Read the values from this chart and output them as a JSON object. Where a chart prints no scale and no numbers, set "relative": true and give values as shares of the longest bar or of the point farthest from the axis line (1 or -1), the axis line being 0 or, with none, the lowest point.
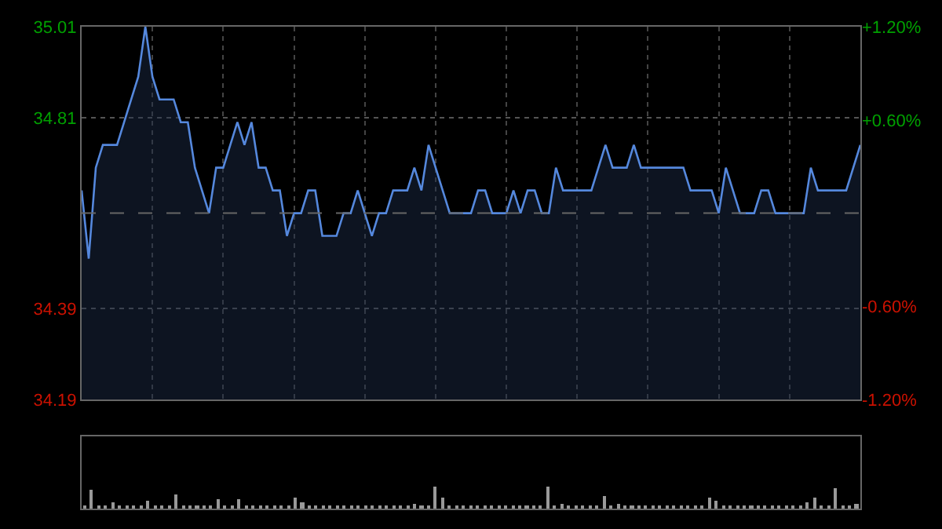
{
  "chart_data": [
    {
      "type": "area",
      "categories": [
        null,
        null,
        null,
        null,
        null,
        null,
        null,
        null,
        null,
        null,
        null,
        null,
        null,
        null,
        null,
        null,
        null,
        null,
        null,
        null,
        null,
        null,
        null,
        null,
        null,
        null,
        null,
        null,
        null,
        null,
        null,
        null,
        null,
        null,
        null,
        null,
        null,
        null,
        null,
        null,
        null,
        null,
        null,
        null,
        null,
        null,
        null,
        null,
        null,
        null,
        null,
        null,
        null,
        null,
        null,
        null,
        null,
        null,
        null,
        null,
        null,
        null,
        null,
        null,
        null,
        null,
        null,
        null,
        null,
        null,
        null,
        null,
        null,
        null,
        null,
        null,
        null,
        null,
        null,
        null,
        null,
        null,
        null,
        null,
        null,
        null,
        null,
        null,
        null,
        null,
        null,
        null,
        null,
        null,
        null,
        null,
        null,
        null,
        null,
        null,
        null,
        null,
        null,
        null,
        null,
        null,
        null,
        null,
        null,
        null,
        null
      ],
      "series": [
        {
          "color": "#5588dd",
          "values": [
            34.65,
            34.5,
            34.7,
            34.75,
            34.75,
            34.75,
            34.8,
            34.85,
            34.9,
            35.01,
            34.9,
            34.85,
            34.85,
            34.85,
            34.8,
            34.8,
            34.7,
            34.65,
            34.6,
            34.7,
            34.7,
            34.75,
            34.8,
            34.75,
            34.8,
            34.7,
            34.7,
            34.65,
            34.65,
            34.55,
            34.6,
            34.6,
            34.65,
            34.65,
            34.55,
            34.55,
            34.55,
            34.6,
            34.6,
            34.65,
            34.6,
            34.55,
            34.6,
            34.6,
            34.65,
            34.65,
            34.65,
            34.7,
            34.65,
            34.75,
            34.7,
            34.65,
            34.6,
            34.6,
            34.6,
            34.6,
            34.65,
            34.65,
            34.6,
            34.6,
            34.6,
            34.65,
            34.6,
            34.65,
            34.65,
            34.6,
            34.6,
            34.7,
            34.65,
            34.65,
            34.65,
            34.65,
            34.65,
            34.7,
            34.75,
            34.7,
            34.7,
            34.7,
            34.75,
            34.7,
            34.7,
            34.7,
            34.7,
            34.7,
            34.7,
            34.7,
            34.65,
            34.65,
            34.65,
            34.65,
            34.6,
            34.7,
            34.65,
            34.6,
            34.6,
            34.6,
            34.65,
            34.65,
            34.6,
            34.6,
            34.6,
            34.6,
            34.6,
            34.7,
            34.65,
            34.65,
            34.65,
            34.65,
            34.65,
            34.7,
            34.75
          ]
        }
      ],
      "ylim": [
        34.19,
        35.01
      ],
      "yticks": [
        34.19,
        34.39,
        34.81,
        35.01
      ],
      "y2lim": [
        -1.2,
        1.2
      ],
      "y2ticks": [
        {
          "value": -1.2,
          "label": "-1.20%"
        },
        {
          "value": -0.6,
          "label": "-0.60%"
        },
        {
          "value": 0.6,
          "label": "+0.60%"
        },
        {
          "value": 1.2,
          "label": "+1.20%"
        }
      ],
      "ref_lines": [
        {
          "axis": "y",
          "value": 34.6,
          "color": "#666666",
          "line_style": "dashed"
        }
      ],
      "grid": true
    },
    {
      "type": "bar",
      "relative": true,
      "color": "#999999",
      "categories": [
        null,
        null,
        null,
        null,
        null,
        null,
        null,
        null,
        null,
        null,
        null,
        null,
        null,
        null,
        null,
        null,
        null,
        null,
        null,
        null,
        null,
        null,
        null,
        null,
        null,
        null,
        null,
        null,
        null,
        null,
        null,
        null,
        null,
        null,
        null,
        null,
        null,
        null,
        null,
        null,
        null,
        null,
        null,
        null,
        null,
        null,
        null,
        null,
        null,
        null,
        null,
        null,
        null,
        null,
        null,
        null,
        null,
        null,
        null,
        null,
        null,
        null,
        null,
        null,
        null,
        null,
        null,
        null,
        null,
        null,
        null,
        null,
        null,
        null,
        null,
        null,
        null,
        null,
        null,
        null,
        null,
        null,
        null,
        null,
        null,
        null,
        null,
        null,
        null,
        null,
        null,
        null,
        null,
        null,
        null,
        null,
        null,
        null,
        null,
        null,
        null,
        null,
        null,
        null,
        null,
        null,
        null,
        null,
        null,
        null,
        null
      ],
      "values": [
        0.1,
        0.86,
        0.1,
        0.07,
        0.3,
        0.07,
        0.1,
        0.07,
        0.07,
        0.35,
        0.07,
        0.1,
        0.07,
        0.65,
        0.07,
        0.1,
        0.07,
        0.07,
        0.1,
        0.43,
        0.07,
        0.07,
        0.43,
        0.07,
        0.1,
        0.07,
        0.07,
        0.1,
        0.07,
        0.07,
        0.5,
        0.3,
        0.07,
        0.1,
        0.07,
        0.07,
        0.1,
        0.07,
        0.07,
        0.1,
        0.07,
        0.07,
        0.1,
        0.07,
        0.07,
        0.1,
        0.07,
        0.2,
        0.07,
        0.1,
        1.0,
        0.5,
        0.07,
        0.1,
        0.07,
        0.07,
        0.1,
        0.07,
        0.07,
        0.1,
        0.07,
        0.07,
        0.1,
        0.07,
        0.07,
        0.1,
        1.0,
        0.07,
        0.2,
        0.07,
        0.1,
        0.07,
        0.07,
        0.1,
        0.57,
        0.07,
        0.2,
        0.07,
        0.1,
        0.07,
        0.07,
        0.1,
        0.15,
        0.07,
        0.07,
        0.1,
        0.07,
        0.07,
        0.1,
        0.5,
        0.35,
        0.07,
        0.1,
        0.07,
        0.07,
        0.1,
        0.07,
        0.07,
        0.1,
        0.07,
        0.07,
        0.1,
        0.07,
        0.3,
        0.5,
        0.07,
        0.1,
        0.93,
        0.07,
        0.1,
        0.2
      ]
    }
  ]
}
